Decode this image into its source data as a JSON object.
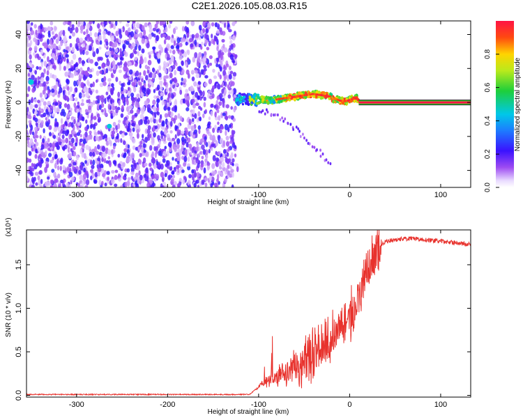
{
  "title": "C2E1.2026.105.08.03.R15",
  "chart_data": [
    {
      "type": "heatmap",
      "name": "spectrogram",
      "xlabel": "Height of straight line (km)",
      "ylabel": "Frequency (Hz)",
      "xlim": [
        -355,
        133
      ],
      "ylim": [
        -50,
        48
      ],
      "xticks": [
        -300,
        -200,
        -100,
        0,
        100
      ],
      "yticks": [
        -40,
        -20,
        0,
        20,
        40
      ],
      "colorbar": {
        "label": "Normalized spectral amplitude",
        "range": [
          0.0,
          1.0
        ],
        "ticks": [
          "0.0",
          "0.2",
          "0.4",
          "0.6",
          "0.8"
        ],
        "tick_values": [
          0.0,
          0.2,
          0.4,
          0.6,
          0.8
        ]
      },
      "regions": [
        {
          "name": "noise",
          "x_range": [
            -355,
            -125
          ],
          "freq_range": [
            -50,
            48
          ],
          "amplitude": "low (0.0-0.2)"
        },
        {
          "name": "signal-trace",
          "x_range": [
            -125,
            10
          ],
          "freq_center": [
            2,
            5
          ],
          "amplitude": "0.3-1.0"
        },
        {
          "name": "carrier-line",
          "x_range": [
            10,
            133
          ],
          "freq": 0,
          "amplitude": "1.0"
        }
      ]
    },
    {
      "type": "line",
      "name": "snr",
      "xlabel": "Height of straight line (km)",
      "ylabel": "SNR (10 * v/v)",
      "y_multiplier": "(x10⁴)",
      "xlim": [
        -355,
        133
      ],
      "ylim": [
        -0.02,
        1.9
      ],
      "xticks": [
        -300,
        -200,
        -100,
        0,
        100
      ],
      "yticks": [
        0.0,
        0.5,
        1.0,
        1.5
      ],
      "ytick_labels": [
        "0.0",
        "0.5",
        "1.0",
        "1.5"
      ],
      "series": [
        {
          "name": "SNR",
          "color": "#e8322d",
          "x": [
            -355,
            -300,
            -200,
            -110,
            -102,
            -95,
            -85,
            -75,
            -65,
            -55,
            -45,
            -35,
            -25,
            -15,
            -5,
            5,
            12,
            20,
            30,
            40,
            60,
            80,
            100,
            120,
            133
          ],
          "y": [
            0.01,
            0.01,
            0.01,
            0.01,
            0.08,
            0.15,
            0.18,
            0.22,
            0.28,
            0.33,
            0.42,
            0.52,
            0.62,
            0.72,
            0.85,
            0.97,
            1.2,
            1.5,
            1.7,
            1.77,
            1.8,
            1.79,
            1.77,
            1.75,
            1.73
          ]
        }
      ]
    }
  ],
  "colors": {
    "snr_line": "#e8322d",
    "noise": "#7a3ef0"
  }
}
